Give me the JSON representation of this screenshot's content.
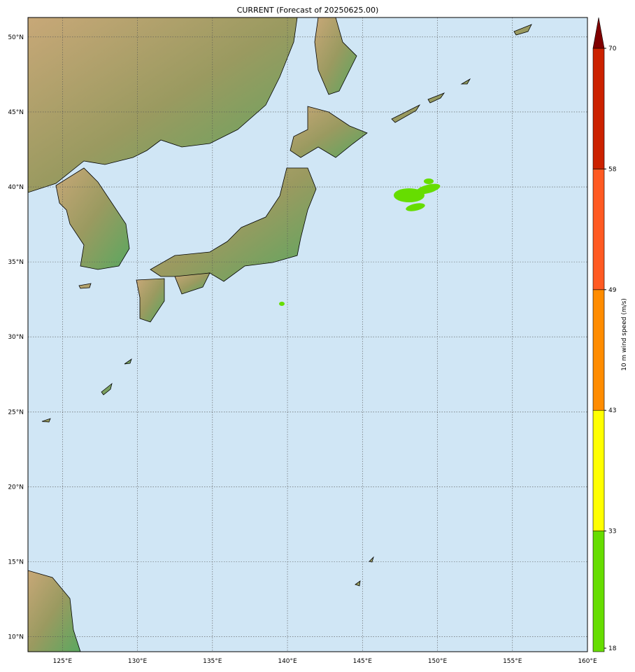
{
  "title": "CURRENT (Forecast of 20250625.00)",
  "map": {
    "projection": "cylindrical",
    "lon_range": [
      122.7,
      160
    ],
    "lat_range": [
      9.0,
      51.3
    ],
    "ocean_color": "#d0e6f5",
    "grid": true,
    "lon_ticks": [
      {
        "value": 125,
        "label": "125°E"
      },
      {
        "value": 130,
        "label": "130°E"
      },
      {
        "value": 135,
        "label": "135°E"
      },
      {
        "value": 140,
        "label": "140°E"
      },
      {
        "value": 145,
        "label": "145°E"
      },
      {
        "value": 150,
        "label": "150°E"
      },
      {
        "value": 155,
        "label": "155°E"
      },
      {
        "value": 160,
        "label": "160°E"
      }
    ],
    "lat_ticks": [
      {
        "value": 10,
        "label": "10°N"
      },
      {
        "value": 15,
        "label": "15°N"
      },
      {
        "value": 20,
        "label": "20°N"
      },
      {
        "value": 25,
        "label": "25°N"
      },
      {
        "value": 30,
        "label": "30°N"
      },
      {
        "value": 35,
        "label": "35°N"
      },
      {
        "value": 40,
        "label": "40°N"
      },
      {
        "value": 45,
        "label": "45°N"
      },
      {
        "value": 50,
        "label": "50°N"
      }
    ]
  },
  "colorbar": {
    "label": "10 m wind speed (m/s)",
    "levels": [
      {
        "value": 18,
        "label": "18"
      },
      {
        "value": 33,
        "label": "33"
      },
      {
        "value": 43,
        "label": "43"
      },
      {
        "value": 49,
        "label": "49"
      },
      {
        "value": 58,
        "label": "58"
      },
      {
        "value": 70,
        "label": "70"
      }
    ],
    "colors": [
      "#66dd00",
      "#ffff00",
      "#ff8c00",
      "#ff5a22",
      "#cc2200"
    ],
    "extend_color": "#800000"
  }
}
